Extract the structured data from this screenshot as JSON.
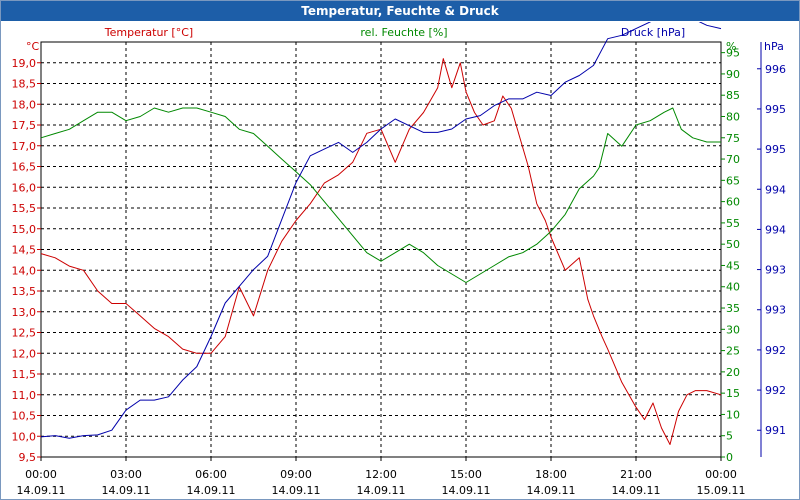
{
  "window": {
    "title": "Temperatur, Feuchte & Druck"
  },
  "chart_data": {
    "type": "line",
    "title": "Temperatur, Feuchte & Druck",
    "x_ticks": [
      {
        "h": 0,
        "time": "00:00",
        "date": "14.09.11"
      },
      {
        "h": 3,
        "time": "03:00",
        "date": "14.09.11"
      },
      {
        "h": 6,
        "time": "06:00",
        "date": "14.09.11"
      },
      {
        "h": 9,
        "time": "09:00",
        "date": "14.09.11"
      },
      {
        "h": 12,
        "time": "12:00",
        "date": "14.09.11"
      },
      {
        "h": 15,
        "time": "15:00",
        "date": "14.09.11"
      },
      {
        "h": 18,
        "time": "18:00",
        "date": "14.09.11"
      },
      {
        "h": 21,
        "time": "21:00",
        "date": "14.09.11"
      },
      {
        "h": 24,
        "time": "00:00",
        "date": "15.09.11"
      }
    ],
    "xlim": [
      0,
      24
    ],
    "axes": {
      "temperature": {
        "title": "Temperatur [°C]",
        "unit": "°C",
        "color": "#cc0000",
        "range": [
          9.5,
          19.5
        ],
        "ticks": [
          "9,5",
          "10,0",
          "10,5",
          "11,0",
          "11,5",
          "12,0",
          "12,5",
          "13,0",
          "13,5",
          "14,0",
          "14,5",
          "15,0",
          "15,5",
          "16,0",
          "16,5",
          "17,0",
          "17,5",
          "18,0",
          "18,5",
          "19,0"
        ]
      },
      "humidity": {
        "title": "rel. Feuchte [%]",
        "unit": "%",
        "color": "#008800",
        "range": [
          0,
          97.5
        ],
        "ticks": [
          "0",
          "5",
          "10",
          "15",
          "20",
          "25",
          "30",
          "35",
          "40",
          "45",
          "50",
          "55",
          "60",
          "65",
          "70",
          "75",
          "80",
          "85",
          "90",
          "95"
        ]
      },
      "pressure": {
        "title": "Druck [hPa]",
        "unit": "hPa",
        "color": "#0000aa",
        "range": [
          990.6,
          996.8
        ],
        "ticks": [
          {
            "v": 991.0,
            "label": "991"
          },
          {
            "v": 991.6,
            "label": "992"
          },
          {
            "v": 992.2,
            "label": "992"
          },
          {
            "v": 992.8,
            "label": "993"
          },
          {
            "v": 993.4,
            "label": "993"
          },
          {
            "v": 994.0,
            "label": "994"
          },
          {
            "v": 994.6,
            "label": "994"
          },
          {
            "v": 995.2,
            "label": "995"
          },
          {
            "v": 995.8,
            "label": "995"
          },
          {
            "v": 996.4,
            "label": "996"
          },
          {
            "v": 997.0,
            "label": "996"
          }
        ]
      }
    },
    "series": [
      {
        "name": "Temperatur",
        "axis": "temperature",
        "color": "#cc0000",
        "x": [
          0,
          0.5,
          1,
          1.5,
          2,
          2.5,
          3,
          3.5,
          4,
          4.5,
          5,
          5.5,
          6,
          6.5,
          7,
          7.5,
          8,
          8.5,
          9,
          9.5,
          10,
          10.5,
          11,
          11.5,
          12,
          12.5,
          13,
          13.5,
          14,
          14.2,
          14.5,
          14.8,
          15,
          15.3,
          15.6,
          16,
          16.3,
          16.6,
          16.9,
          17.2,
          17.5,
          17.8,
          18,
          18.5,
          19,
          19.3,
          19.5,
          19.8,
          20,
          20.5,
          21,
          21.3,
          21.6,
          21.9,
          22.2,
          22.5,
          22.8,
          23.1,
          23.5,
          24
        ],
        "y": [
          14.4,
          14.3,
          14.1,
          14.0,
          13.5,
          13.2,
          13.2,
          12.9,
          12.6,
          12.4,
          12.1,
          12.0,
          12.0,
          12.4,
          13.6,
          12.9,
          14.0,
          14.7,
          15.2,
          15.6,
          16.1,
          16.3,
          16.6,
          17.3,
          17.4,
          16.6,
          17.4,
          17.8,
          18.4,
          19.1,
          18.4,
          19.0,
          18.3,
          17.8,
          17.5,
          17.6,
          18.2,
          17.9,
          17.2,
          16.5,
          15.6,
          15.2,
          14.8,
          14.0,
          14.3,
          13.3,
          12.9,
          12.4,
          12.1,
          11.3,
          10.7,
          10.4,
          10.8,
          10.2,
          9.8,
          10.6,
          11.0,
          11.1,
          11.1,
          11.0
        ]
      },
      {
        "name": "rel. Feuchte",
        "axis": "humidity",
        "color": "#008800",
        "x": [
          0,
          0.5,
          1,
          1.5,
          2,
          2.5,
          3,
          3.5,
          4,
          4.5,
          5,
          5.5,
          6,
          6.5,
          7,
          7.5,
          8,
          8.5,
          9,
          9.5,
          10,
          10.5,
          11,
          11.5,
          12,
          12.5,
          13,
          13.5,
          14,
          14.5,
          15,
          15.5,
          16,
          16.5,
          17,
          17.5,
          18,
          18.5,
          19,
          19.5,
          19.7,
          20,
          20.5,
          21,
          21.5,
          22,
          22.3,
          22.6,
          23,
          23.5,
          24
        ],
        "y": [
          75,
          76,
          77,
          79,
          81,
          81,
          79,
          80,
          82,
          81,
          82,
          82,
          81,
          80,
          77,
          76,
          73,
          70,
          67,
          64,
          60,
          56,
          52,
          48,
          46,
          48,
          50,
          48,
          45,
          43,
          41,
          43,
          45,
          47,
          48,
          50,
          53,
          57,
          63,
          66,
          68,
          76,
          73,
          78,
          79,
          81,
          82,
          77,
          75,
          74,
          74
        ]
      },
      {
        "name": "Druck",
        "axis": "pressure",
        "color": "#0000aa",
        "x": [
          0,
          0.5,
          1,
          1.5,
          2,
          2.5,
          3,
          3.5,
          4,
          4.5,
          5,
          5.5,
          6,
          6.5,
          7,
          7.5,
          8,
          8.5,
          9,
          9.5,
          10,
          10.5,
          11,
          11.5,
          12,
          12.5,
          13,
          13.5,
          14,
          14.5,
          15,
          15.5,
          16,
          16.5,
          17,
          17.5,
          18,
          18.5,
          19,
          19.5,
          20,
          20.5,
          21,
          21.5,
          22,
          22.5,
          23,
          23.5,
          24
        ],
        "y": [
          990.9,
          990.92,
          990.88,
          990.92,
          990.93,
          991.0,
          991.3,
          991.45,
          991.45,
          991.5,
          991.75,
          991.95,
          992.4,
          992.9,
          993.15,
          993.4,
          993.6,
          994.15,
          994.7,
          995.1,
          995.2,
          995.3,
          995.15,
          995.3,
          995.5,
          995.65,
          995.55,
          995.45,
          995.45,
          995.5,
          995.65,
          995.7,
          995.85,
          995.95,
          995.95,
          996.05,
          996.0,
          996.2,
          996.3,
          996.45,
          996.85,
          996.9,
          997.0,
          997.1,
          997.2,
          997.4,
          997.15,
          997.05,
          997.0
        ]
      }
    ]
  }
}
